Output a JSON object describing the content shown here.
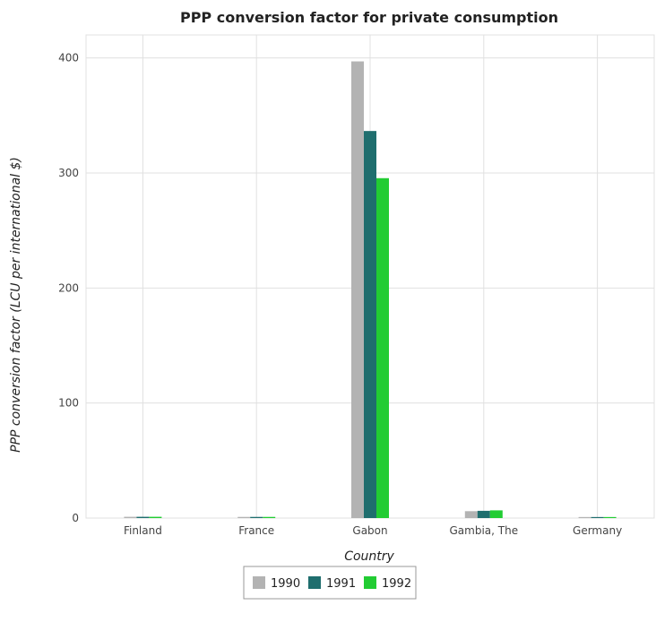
{
  "chart_data": {
    "type": "bar",
    "title": "PPP conversion factor for private consumption",
    "xlabel": "Country",
    "ylabel": "PPP conversion factor (LCU per international $)",
    "categories": [
      "Finland",
      "France",
      "Gabon",
      "Gambia, The",
      "Germany"
    ],
    "series": [
      {
        "name": "1990",
        "color": "#b3b3b3",
        "values": [
          1.1,
          1.0,
          397.0,
          6.0,
          0.9
        ]
      },
      {
        "name": "1991",
        "color": "#1f6e6e",
        "values": [
          1.1,
          1.0,
          336.5,
          6.3,
          0.9
        ]
      },
      {
        "name": "1992",
        "color": "#22cc33",
        "values": [
          1.1,
          1.0,
          295.5,
          6.7,
          0.9
        ]
      }
    ],
    "ylim": [
      0,
      420
    ],
    "yticks": [
      0,
      100,
      200,
      300,
      400
    ],
    "grid": true,
    "legend_position": "bottom-center"
  }
}
